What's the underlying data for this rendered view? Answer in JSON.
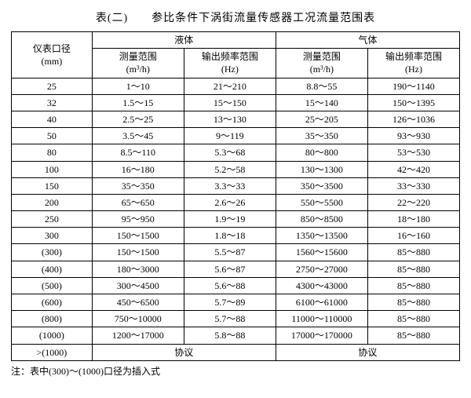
{
  "title": "表(二)  参比条件下涡街流量传感器工况流量范围表",
  "headers": {
    "diameter_l1": "仪表口径",
    "diameter_l2": "(mm)",
    "liquid": "液体",
    "gas": "气体",
    "meas_l1": "测量范围",
    "meas_l2_liquid": "(m³/h)",
    "freq_l1": "输出频率范围",
    "freq_l2": "(Hz)",
    "meas_l2_gas": "(m³/h)"
  },
  "rows": [
    {
      "d": "25",
      "lm": "1～10",
      "lf": "21～210",
      "gm": "8.8～55",
      "gf": "190～1140"
    },
    {
      "d": "32",
      "lm": "1.5～15",
      "lf": "15～150",
      "gm": "15～140",
      "gf": "150～1395"
    },
    {
      "d": "40",
      "lm": "2.5～25",
      "lf": "13～130",
      "gm": "25～205",
      "gf": "126～1036"
    },
    {
      "d": "50",
      "lm": "3.5～45",
      "lf": "9～119",
      "gm": "35～350",
      "gf": "93～930"
    },
    {
      "d": "80",
      "lm": "8.5～110",
      "lf": "5.3～68",
      "gm": "80～800",
      "gf": "53～530"
    },
    {
      "d": "100",
      "lm": "16～180",
      "lf": "5.2～58",
      "gm": "130～1300",
      "gf": "42～420"
    },
    {
      "d": "150",
      "lm": "35～350",
      "lf": "3.3～33",
      "gm": "350～3500",
      "gf": "33～330"
    },
    {
      "d": "200",
      "lm": "65～650",
      "lf": "2.6～26",
      "gm": "550～5500",
      "gf": "22～220"
    },
    {
      "d": "250",
      "lm": "95～950",
      "lf": "1.9～19",
      "gm": "850～8500",
      "gf": "18～180"
    },
    {
      "d": "300",
      "lm": "150～1500",
      "lf": "1.8～18",
      "gm": "1350～13500",
      "gf": "16～160"
    },
    {
      "d": "(300)",
      "lm": "150～1500",
      "lf": "5.5～87",
      "gm": "1560～15600",
      "gf": "85～880"
    },
    {
      "d": "(400)",
      "lm": "180～3000",
      "lf": "5.6～87",
      "gm": "2750～27000",
      "gf": "85～880"
    },
    {
      "d": "(500)",
      "lm": "300～4500",
      "lf": "5.6～88",
      "gm": "4300～43000",
      "gf": "85～880"
    },
    {
      "d": "(600)",
      "lm": "450～6500",
      "lf": "5.7～89",
      "gm": "6100～61000",
      "gf": "85～880"
    },
    {
      "d": "(800)",
      "lm": "750～10000",
      "lf": "5.7～88",
      "gm": "11000～110000",
      "gf": "85～880"
    },
    {
      "d": "(1000)",
      "lm": "1200～17000",
      "lf": "5.8～88",
      "gm": "17000～170000",
      "gf": "85～880"
    },
    {
      "d": ">(1000)",
      "lm": "协议",
      "lf": "",
      "gm": "协议",
      "gf": ""
    }
  ],
  "footnote": "注：表中(300)～(1000)口径为插入式"
}
